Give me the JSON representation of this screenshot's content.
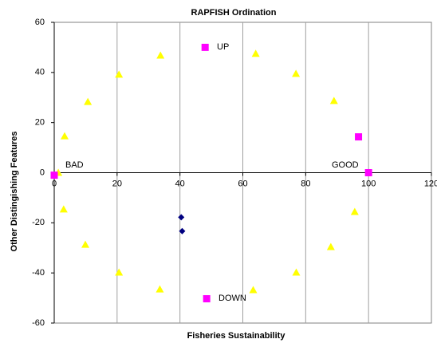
{
  "chart_data": {
    "type": "scatter",
    "title": "RAPFISH Ordination",
    "x_label": "Fisheries Sustainability",
    "y_label": "Other Distingishing Features",
    "xlim": [
      0,
      120
    ],
    "xticks": [
      0,
      20,
      40,
      60,
      80,
      100,
      120
    ],
    "ylim": [
      -60,
      60
    ],
    "yticks": [
      -60,
      -40,
      -20,
      0,
      20,
      40,
      60
    ],
    "grid": true,
    "series": [
      {
        "color": "#ffff00",
        "marker": "triangle",
        "x": [
          1.3,
          3.3,
          10.7,
          20.6,
          33.8,
          64.1,
          76.9,
          89,
          3,
          9.9,
          20.6,
          33.6,
          63.3,
          77,
          88,
          95.6
        ],
        "values": [
          0,
          14.6,
          28.3,
          39.2,
          46.8,
          47.5,
          39.5,
          28.7,
          -14.6,
          -28.7,
          -39.8,
          -46.5,
          -46.8,
          -39.8,
          -29.6,
          -15.6
        ]
      },
      {
        "color": "#ff00ff",
        "marker": "square",
        "x": [
          0,
          48,
          96.8,
          100,
          48.5
        ],
        "values": [
          -1,
          50,
          14.3,
          0,
          -50.3
        ]
      },
      {
        "color": "#000080",
        "marker": "diamond",
        "x": [
          40.4,
          40.7
        ],
        "values": [
          -17.8,
          -23.3
        ]
      }
    ],
    "annotations": [
      "UP",
      "BAD",
      "GOOD",
      "DOWN"
    ]
  }
}
